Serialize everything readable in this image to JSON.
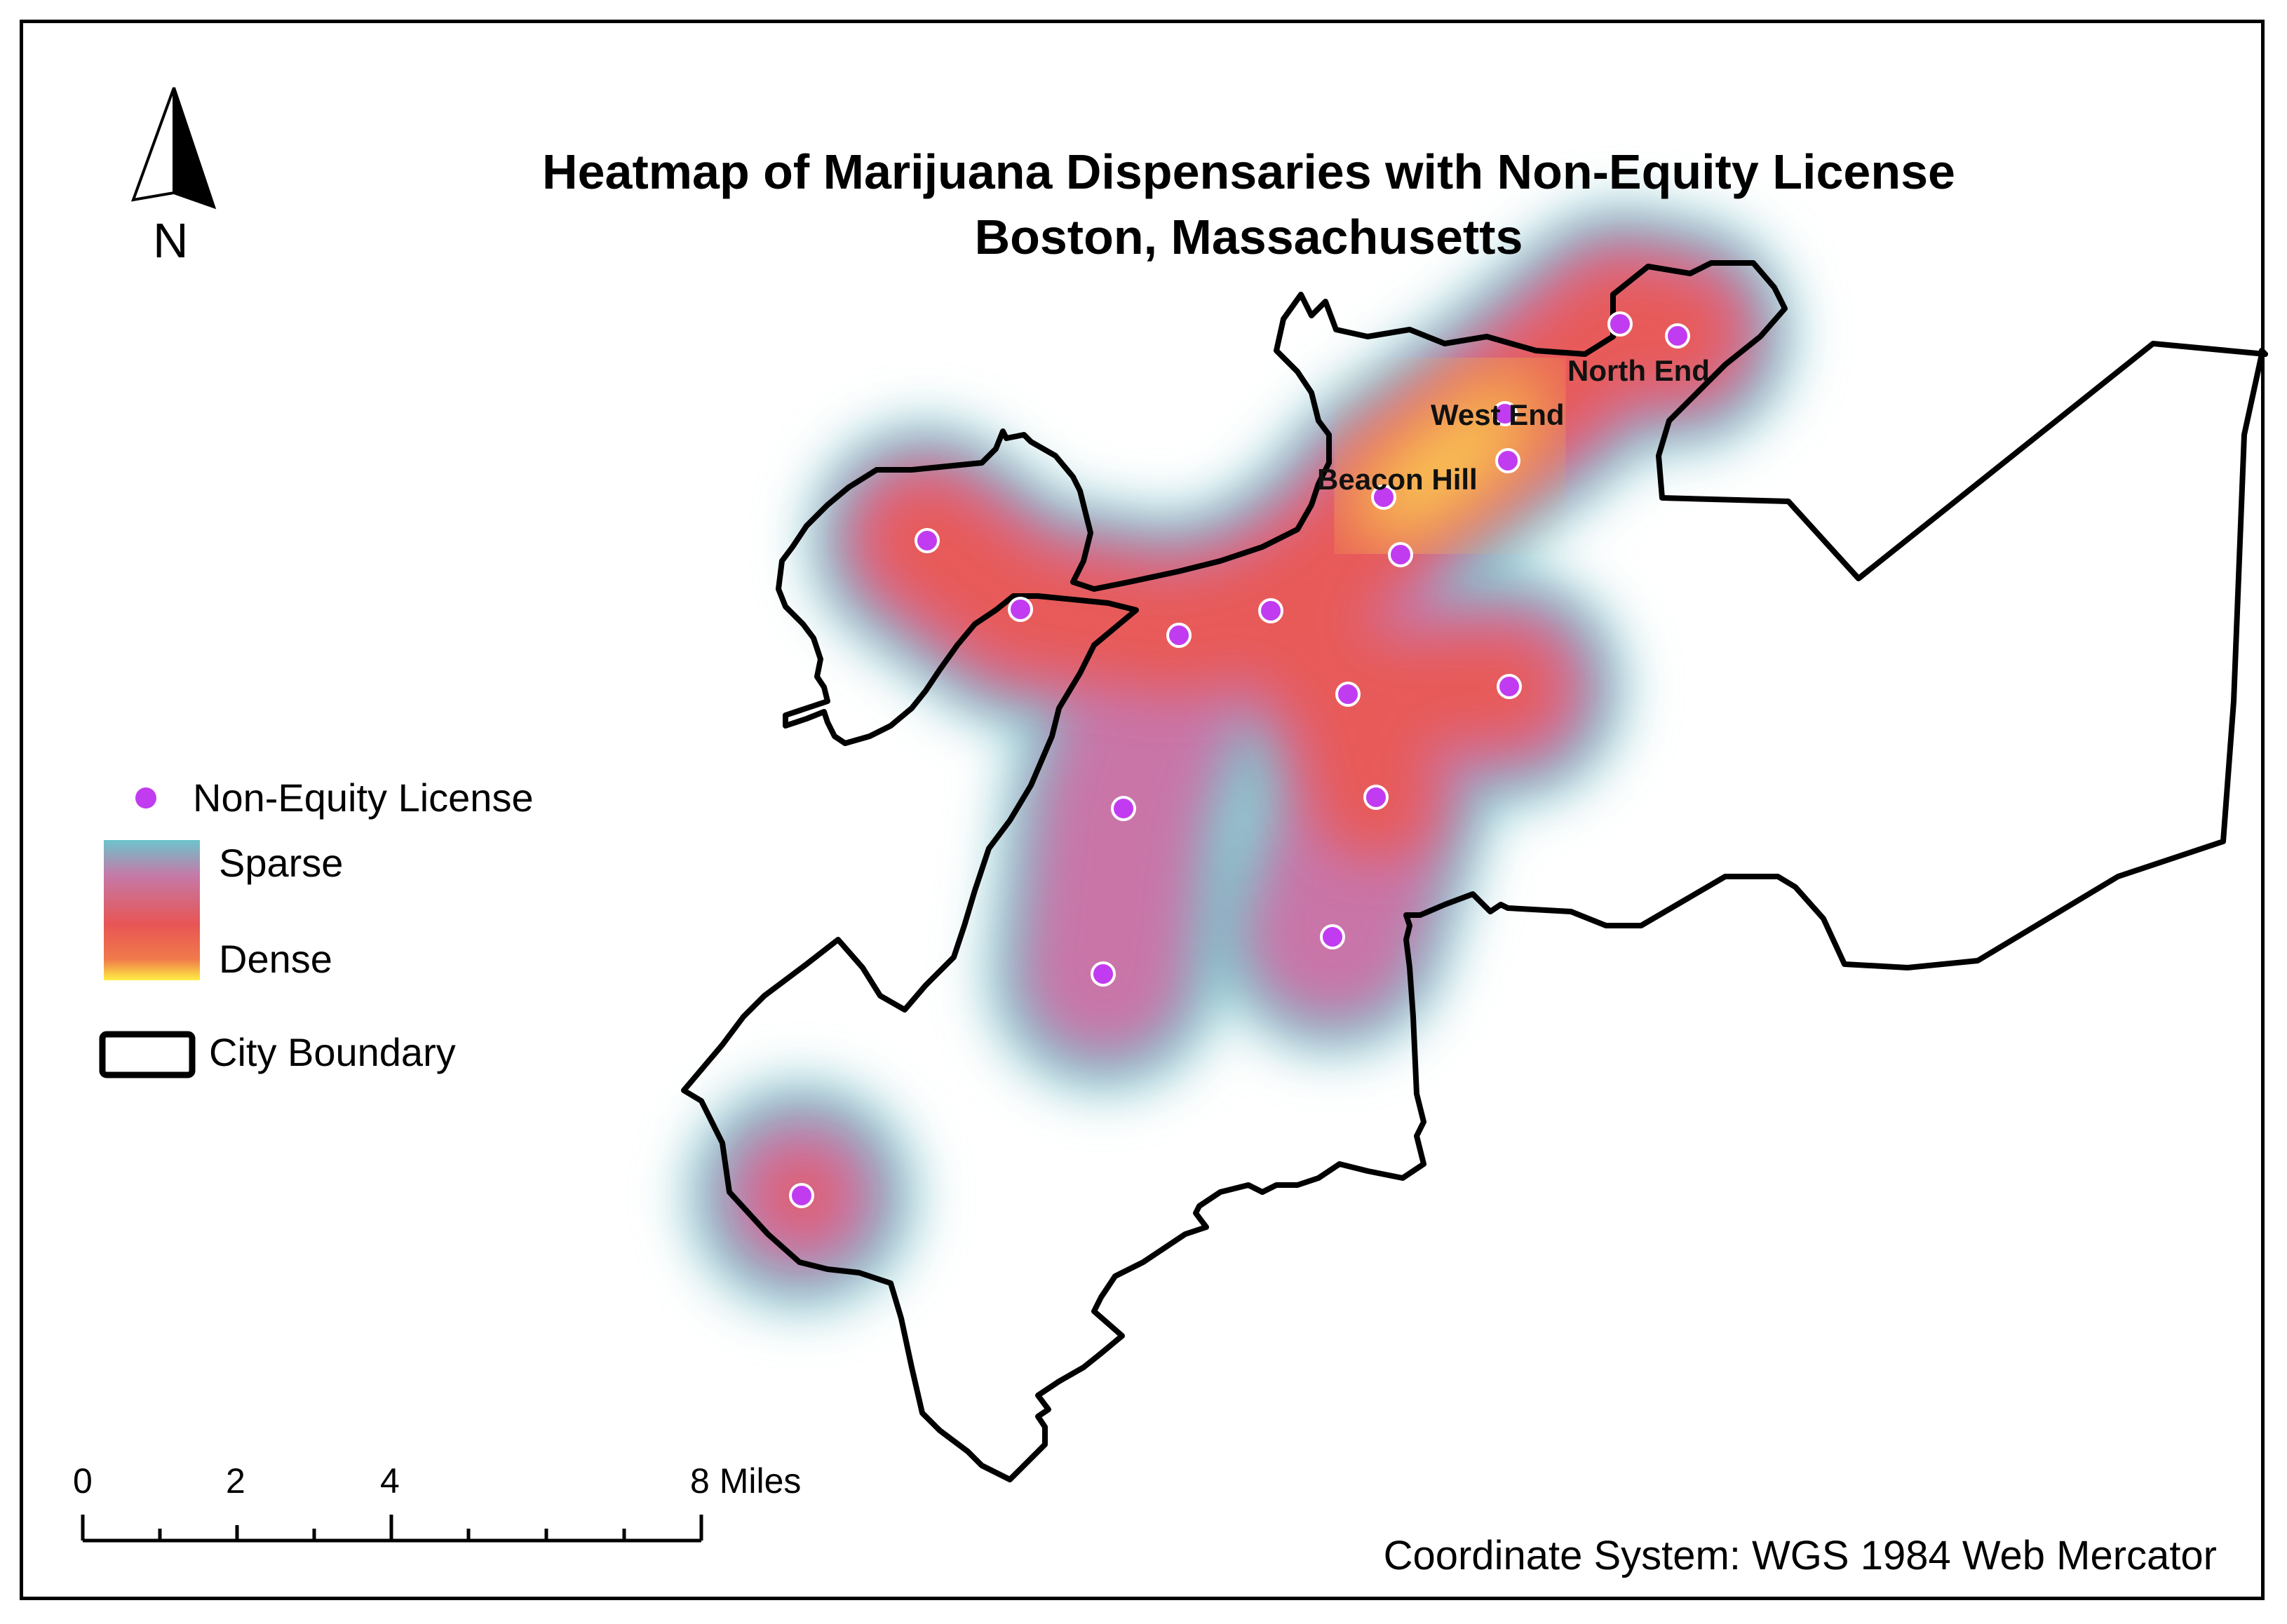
{
  "title": {
    "line1": "Heatmap of Marijuana Dispensaries with Non-Equity License",
    "line2": "Boston, Massachusetts"
  },
  "north_arrow": {
    "letter": "N",
    "icon": "north-arrow-icon"
  },
  "neighborhoods": [
    "North End",
    "West End",
    "Beacon Hill"
  ],
  "legend": {
    "points_label": "Non-Equity License",
    "sparse_label": "Sparse",
    "dense_label": "Dense",
    "boundary_label": "City Boundary",
    "colors": {
      "point": "#cc33ff",
      "sparse": "#66c2cc",
      "mid": "#e85a5a",
      "dense": "#ffee44"
    }
  },
  "scale_bar": {
    "labels": [
      "0",
      "2",
      "4",
      "8 Miles"
    ]
  },
  "coordinate_system": "Coordinate System: WGS 1984 Web Mercator"
}
